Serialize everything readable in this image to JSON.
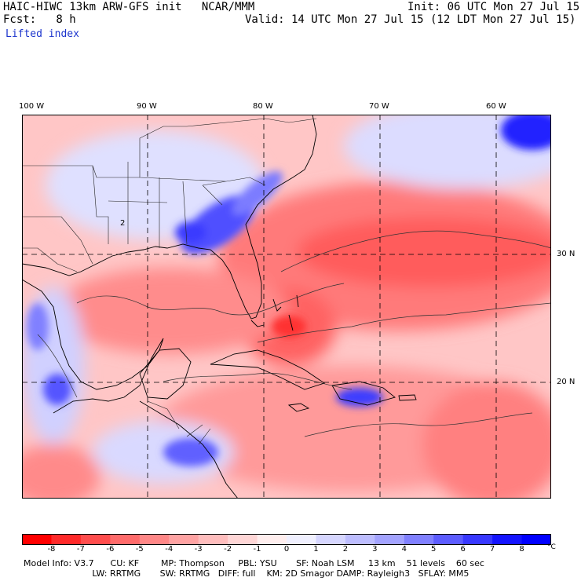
{
  "header": {
    "line1_left": "HAIC-HIWC 13km ARW-GFS init   NCAR/MMM",
    "line1_right": "Init: 06 UTC Mon 27 Jul 15",
    "line2_left": "Fcst:   8 h",
    "line2_right": "Valid: 14 UTC Mon 27 Jul 15 (12 LDT Mon 27 Jul 15)",
    "field": "Lifted index"
  },
  "map": {
    "lon_labels": [
      "100 W",
      "90 W",
      "80 W",
      "70 W",
      "60 W"
    ],
    "lat_labels": [
      "30 N",
      "20 N"
    ],
    "contour_label": "2"
  },
  "colorbar": {
    "ticks": [
      "-8",
      "-7",
      "-6",
      "-5",
      "-4",
      "-3",
      "-2",
      "-1",
      "0",
      "1",
      "2",
      "3",
      "4",
      "5",
      "6",
      "7",
      "8"
    ],
    "unit": "°C",
    "colors": [
      "#ff0000",
      "#ff2a2a",
      "#ff4d4d",
      "#ff6b6b",
      "#ff8787",
      "#ffa3a3",
      "#ffbdbd",
      "#ffd6d6",
      "#ffeeee",
      "#f0f0ff",
      "#d6d6ff",
      "#bdbdff",
      "#a3a3ff",
      "#8080ff",
      "#5c5cff",
      "#3838ff",
      "#1414ff",
      "#0000ff"
    ]
  },
  "footer": {
    "line1": "Model Info: V3.7      CU: KF        MP: Thompson     PBL: YSU       SF: Noah LSM     13 km    51 levels    60 sec",
    "line2": "                         LW: RRTMG       SW: RRTMG   DIFF: full    KM: 2D Smagor DAMP: Rayleigh3   SFLAY: MM5"
  }
}
